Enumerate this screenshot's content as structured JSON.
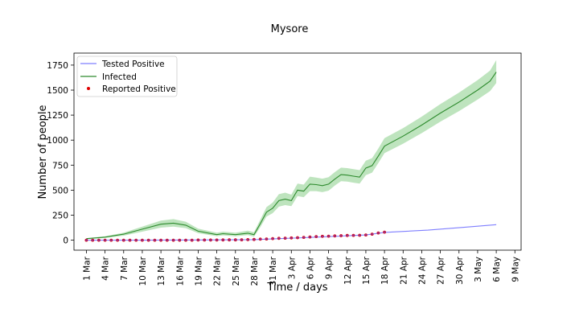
{
  "chart_data": {
    "type": "line",
    "title": "Mysore",
    "xlabel": "Time / days",
    "ylabel": "Number of people",
    "x_start_date": "2020-03-01",
    "xlim": [
      "2020-02-28",
      "2020-05-10"
    ],
    "ylim": [
      -100,
      1870
    ],
    "yticks": [
      0,
      250,
      500,
      750,
      1000,
      1250,
      1500,
      1750
    ],
    "xticks": [
      "1 Mar",
      "4 Mar",
      "7 Mar",
      "10 Mar",
      "13 Mar",
      "16 Mar",
      "19 Mar",
      "22 Mar",
      "25 Mar",
      "28 Mar",
      "31 Mar",
      "3 Apr",
      "6 Apr",
      "9 Apr",
      "12 Apr",
      "15 Apr",
      "18 Apr",
      "21 Apr",
      "24 Apr",
      "27 Apr",
      "30 Apr",
      "3 May",
      "6 May",
      "9 May"
    ],
    "legend": {
      "position": "top-left"
    },
    "series": [
      {
        "name": "Tested Positive",
        "style": "line",
        "color": "#7f7fff",
        "x": [
          "2020-03-01",
          "2020-03-10",
          "2020-03-20",
          "2020-03-28",
          "2020-04-01",
          "2020-04-05",
          "2020-04-10",
          "2020-04-15",
          "2020-04-18",
          "2020-04-25",
          "2020-05-01",
          "2020-05-06"
        ],
        "y": [
          0,
          0,
          2,
          5,
          15,
          25,
          38,
          52,
          78,
          100,
          130,
          155
        ]
      },
      {
        "name": "Infected",
        "style": "line-band",
        "color": "#2e8b2e",
        "band_color": "#a8dba8",
        "x": [
          "2020-03-01",
          "2020-03-04",
          "2020-03-07",
          "2020-03-10",
          "2020-03-13",
          "2020-03-15",
          "2020-03-17",
          "2020-03-19",
          "2020-03-22",
          "2020-03-23",
          "2020-03-25",
          "2020-03-27",
          "2020-03-28",
          "2020-03-29",
          "2020-03-30",
          "2020-03-31",
          "2020-04-01",
          "2020-04-02",
          "2020-04-03",
          "2020-04-04",
          "2020-04-05",
          "2020-04-06",
          "2020-04-07",
          "2020-04-08",
          "2020-04-09",
          "2020-04-10",
          "2020-04-11",
          "2020-04-12",
          "2020-04-13",
          "2020-04-14",
          "2020-04-15",
          "2020-04-16",
          "2020-04-17",
          "2020-04-18",
          "2020-04-21",
          "2020-04-24",
          "2020-04-27",
          "2020-04-30",
          "2020-05-03",
          "2020-05-05",
          "2020-05-06"
        ],
        "y": [
          15,
          30,
          60,
          110,
          160,
          170,
          150,
          90,
          55,
          65,
          55,
          70,
          55,
          165,
          280,
          320,
          395,
          410,
          395,
          500,
          490,
          560,
          555,
          545,
          560,
          610,
          655,
          650,
          640,
          630,
          720,
          745,
          840,
          940,
          1040,
          1150,
          1270,
          1380,
          1500,
          1590,
          1680
        ],
        "lower": [
          10,
          22,
          45,
          85,
          125,
          135,
          120,
          70,
          40,
          48,
          38,
          50,
          35,
          130,
          235,
          270,
          335,
          350,
          340,
          440,
          430,
          490,
          490,
          480,
          495,
          545,
          590,
          585,
          575,
          565,
          650,
          675,
          770,
          870,
          965,
          1070,
          1185,
          1290,
          1405,
          1490,
          1570
        ],
        "upper": [
          20,
          38,
          75,
          135,
          195,
          210,
          185,
          115,
          75,
          85,
          75,
          95,
          80,
          205,
          330,
          375,
          460,
          475,
          455,
          565,
          555,
          635,
          625,
          615,
          630,
          680,
          725,
          720,
          710,
          700,
          795,
          820,
          915,
          1020,
          1120,
          1235,
          1360,
          1475,
          1600,
          1695,
          1800
        ]
      },
      {
        "name": "Reported Positive",
        "style": "points",
        "color": "#e00000",
        "x": [
          "2020-03-01",
          "2020-03-02",
          "2020-03-03",
          "2020-03-04",
          "2020-03-05",
          "2020-03-06",
          "2020-03-07",
          "2020-03-08",
          "2020-03-09",
          "2020-03-10",
          "2020-03-11",
          "2020-03-12",
          "2020-03-13",
          "2020-03-14",
          "2020-03-15",
          "2020-03-16",
          "2020-03-17",
          "2020-03-18",
          "2020-03-19",
          "2020-03-20",
          "2020-03-21",
          "2020-03-22",
          "2020-03-23",
          "2020-03-24",
          "2020-03-25",
          "2020-03-26",
          "2020-03-27",
          "2020-03-28",
          "2020-03-29",
          "2020-03-30",
          "2020-03-31",
          "2020-04-01",
          "2020-04-02",
          "2020-04-03",
          "2020-04-04",
          "2020-04-05",
          "2020-04-06",
          "2020-04-07",
          "2020-04-08",
          "2020-04-09",
          "2020-04-10",
          "2020-04-11",
          "2020-04-12",
          "2020-04-13",
          "2020-04-14",
          "2020-04-15",
          "2020-04-16",
          "2020-04-17",
          "2020-04-18"
        ],
        "y": [
          0,
          0,
          0,
          0,
          0,
          0,
          0,
          0,
          0,
          0,
          0,
          0,
          0,
          0,
          0,
          0,
          0,
          0,
          1,
          1,
          1,
          1,
          2,
          3,
          3,
          4,
          5,
          7,
          10,
          12,
          16,
          18,
          20,
          22,
          25,
          28,
          32,
          36,
          38,
          40,
          42,
          45,
          47,
          48,
          49,
          52,
          60,
          72,
          80
        ]
      }
    ]
  }
}
